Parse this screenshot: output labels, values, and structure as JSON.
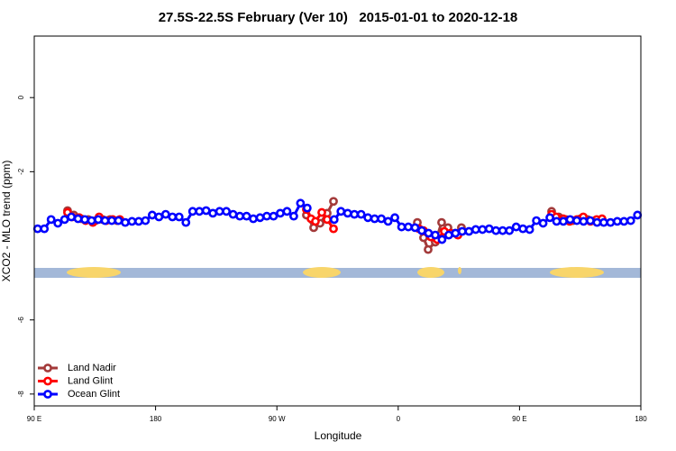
{
  "chart_data": {
    "type": "line",
    "title": "27.5S-22.5S February (Ver 10)   2015-01-01 to 2020-12-18",
    "x_label": "Longitude",
    "y_label": "XCO2 - MLO trend (ppm)",
    "xlim": [
      90,
      540
    ],
    "ylim": [
      -8.32,
      1.66
    ],
    "xticks": [
      {
        "value": 90,
        "label": "90 E"
      },
      180,
      {
        "value": 270,
        "label": "90 W"
      },
      {
        "value": 360,
        "label": "0"
      },
      {
        "value": 450,
        "label": "90 E"
      },
      {
        "value": 540,
        "label": "180"
      }
    ],
    "yticks": [
      0,
      -2,
      -6,
      -8
    ],
    "legend": "bottom-left",
    "series": [
      {
        "name": "Land Nadir",
        "color": "#a33a3a",
        "x": [
          114.7,
          119.4,
          124.8,
          130.1,
          135.5,
          140.8,
          146.2,
          151.5,
          null,
          291.9,
          297.3,
          302.0,
          307.3,
          312.0,
          null,
          374.2,
          378.8,
          382.2,
          387.5,
          392.2,
          396.9,
          402.2,
          406.9,
          null,
          473.8,
          479.1,
          484.5,
          489.8,
          495.2,
          500.5,
          505.8,
          511.2
        ],
        "values": [
          -3.05,
          -3.17,
          -3.27,
          -3.29,
          -3.32,
          -3.29,
          -3.29,
          -3.32,
          null,
          -3.17,
          -3.51,
          -3.39,
          -3.12,
          -2.8,
          null,
          -3.37,
          -3.78,
          -4.1,
          -3.9,
          -3.37,
          -3.51,
          -3.66,
          -3.51,
          null,
          -3.07,
          -3.22,
          -3.29,
          -3.32,
          -3.27,
          -3.29,
          -3.32,
          -3.29
        ]
      },
      {
        "name": "Land Glint",
        "color": "#ff0000",
        "x": [
          114.7,
          118.1,
          123.4,
          128.1,
          133.5,
          138.1,
          143.5,
          148.2,
          153.5,
          null,
          291.9,
          295.3,
          298.6,
          303.3,
          307.3,
          312.0,
          null,
          375.5,
          378.8,
          384.2,
          388.9,
          394.2,
          398.9,
          404.3,
          null,
          473.8,
          477.2,
          482.5,
          487.2,
          492.6,
          497.3,
          502.6,
          507.2,
          511.2
        ],
        "values": [
          -3.1,
          -3.22,
          -3.24,
          -3.32,
          -3.37,
          -3.22,
          -3.32,
          -3.29,
          -3.29,
          null,
          -3.02,
          -3.27,
          -3.34,
          -3.1,
          -3.29,
          -3.54,
          null,
          -3.54,
          -3.59,
          -3.76,
          -3.83,
          -3.61,
          -3.66,
          -3.71,
          null,
          -3.15,
          -3.22,
          -3.27,
          -3.34,
          -3.29,
          -3.22,
          -3.34,
          -3.29,
          -3.27
        ]
      },
      {
        "name": "Ocean Glint",
        "color": "#0000ff",
        "x": [
          92.5,
          97.5,
          102.5,
          107.5,
          112.5,
          117.5,
          122.5,
          127.5,
          132.5,
          137.5,
          142.5,
          147.5,
          152.5,
          157.5,
          162.5,
          167.5,
          172.5,
          177.5,
          182.5,
          187.5,
          192.5,
          197.5,
          202.5,
          207.5,
          212.5,
          217.5,
          222.5,
          227.5,
          232.5,
          237.5,
          242.5,
          247.5,
          252.5,
          257.5,
          262.5,
          267.5,
          272.5,
          277.5,
          282.5,
          287.5,
          292.5,
          297.5,
          302.5,
          307.5,
          312.5,
          317.5,
          322.5,
          327.5,
          332.5,
          337.5,
          342.5,
          347.5,
          352.5,
          357.5,
          362.5,
          367.5,
          372.5,
          377.5,
          382.5,
          387.5,
          392.5,
          397.5,
          402.5,
          407.5,
          412.5,
          417.5,
          422.5,
          427.5,
          432.5,
          437.5,
          442.5,
          447.5,
          452.5,
          457.5,
          462.5,
          467.5,
          472.5,
          477.5,
          482.5,
          487.5,
          492.5,
          497.5,
          502.5,
          507.5,
          512.5,
          517.5,
          522.5,
          527.5,
          532.5,
          537.5
        ],
        "values": [
          -3.54,
          -3.54,
          -3.29,
          -3.39,
          -3.29,
          -3.22,
          -3.27,
          -3.29,
          -3.32,
          -3.29,
          -3.32,
          -3.32,
          -3.32,
          -3.37,
          -3.34,
          -3.34,
          -3.32,
          -3.17,
          -3.22,
          -3.15,
          -3.22,
          -3.22,
          -3.37,
          -3.07,
          -3.07,
          -3.05,
          -3.12,
          -3.07,
          -3.07,
          -3.15,
          -3.2,
          -3.2,
          -3.27,
          -3.24,
          -3.2,
          -3.2,
          -3.12,
          -3.07,
          -3.2,
          -2.85,
          -2.98,
          null,
          null,
          null,
          -3.29,
          -3.07,
          -3.12,
          -3.15,
          -3.15,
          -3.24,
          -3.27,
          -3.27,
          -3.34,
          -3.24,
          -3.49,
          -3.49,
          -3.51,
          -3.59,
          -3.66,
          -3.71,
          -3.83,
          -3.71,
          -3.66,
          -3.61,
          -3.61,
          -3.56,
          -3.56,
          -3.54,
          -3.59,
          -3.59,
          -3.59,
          -3.49,
          -3.54,
          -3.56,
          -3.32,
          -3.39,
          -3.24,
          -3.34,
          -3.34,
          -3.29,
          -3.32,
          -3.34,
          -3.32,
          -3.37,
          -3.37,
          -3.37,
          -3.34,
          -3.34,
          -3.32,
          -3.17
        ]
      }
    ]
  }
}
